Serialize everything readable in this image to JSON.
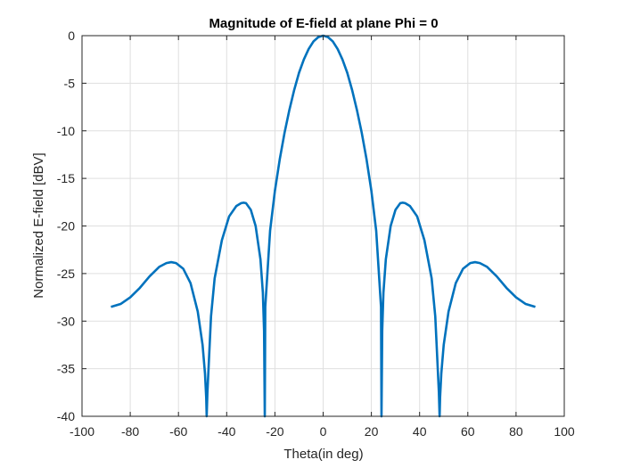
{
  "chart_data": {
    "type": "line",
    "title": "Magnitude of E-field at plane Phi = 0",
    "xlabel": "Theta(in deg)",
    "ylabel": "Normalized E-field [dBV]",
    "xlim": [
      -100,
      100
    ],
    "ylim": [
      -40,
      0
    ],
    "xticks": [
      -100,
      -80,
      -60,
      -40,
      -20,
      0,
      20,
      40,
      60,
      80,
      100
    ],
    "yticks": [
      0,
      -5,
      -10,
      -15,
      -20,
      -25,
      -30,
      -35,
      -40
    ],
    "grid": true,
    "legend": "none",
    "series": [
      {
        "color": "#0072BD",
        "x": [
          -88,
          -84,
          -80,
          -76,
          -72,
          -68,
          -65,
          -63,
          -61,
          -58,
          -55,
          -52,
          -50,
          -49,
          -48.5,
          -48.3,
          -48.3,
          -48,
          -46.5,
          -45,
          -42,
          -39,
          -36,
          -34,
          -33,
          -32,
          -30,
          -28,
          -26,
          -25,
          -24.5,
          -24.2,
          -24.2,
          -24,
          -22,
          -20,
          -18,
          -16,
          -14,
          -12,
          -10,
          -8,
          -6,
          -4,
          -2,
          0,
          2,
          4,
          6,
          8,
          10,
          12,
          14,
          16,
          18,
          20,
          22,
          24,
          24.2,
          24.2,
          24.5,
          25,
          26,
          28,
          30,
          32,
          33,
          34,
          36,
          39,
          42,
          45,
          46.5,
          48,
          48.3,
          48.3,
          48.5,
          49,
          50,
          52,
          55,
          58,
          61,
          63,
          65,
          68,
          72,
          76,
          80,
          84,
          88
        ],
        "y": [
          -28.5,
          -28.2,
          -27.5,
          -26.5,
          -25.3,
          -24.3,
          -23.9,
          -23.8,
          -23.9,
          -24.5,
          -26.0,
          -29.0,
          -32.5,
          -35.5,
          -38.0,
          -40,
          -40,
          -37.5,
          -29.5,
          -25.5,
          -21.5,
          -19.0,
          -17.9,
          -17.6,
          -17.55,
          -17.6,
          -18.3,
          -20.0,
          -23.5,
          -27.0,
          -31.0,
          -40,
          -40,
          -28.5,
          -20.5,
          -16.3,
          -13.0,
          -10.2,
          -7.8,
          -5.7,
          -3.9,
          -2.5,
          -1.4,
          -0.6,
          -0.15,
          0,
          -0.15,
          -0.6,
          -1.4,
          -2.5,
          -3.9,
          -5.7,
          -7.8,
          -10.2,
          -13.0,
          -16.3,
          -20.5,
          -28.5,
          -40,
          -40,
          -31.0,
          -27.0,
          -23.5,
          -20.0,
          -18.3,
          -17.6,
          -17.55,
          -17.6,
          -17.9,
          -19.0,
          -21.5,
          -25.5,
          -29.5,
          -37.5,
          -40,
          -40,
          -38.0,
          -35.5,
          -32.5,
          -29.0,
          -26.0,
          -24.5,
          -23.9,
          -23.8,
          -23.9,
          -24.3,
          -25.3,
          -26.5,
          -27.5,
          -28.2,
          -28.5
        ]
      }
    ]
  }
}
